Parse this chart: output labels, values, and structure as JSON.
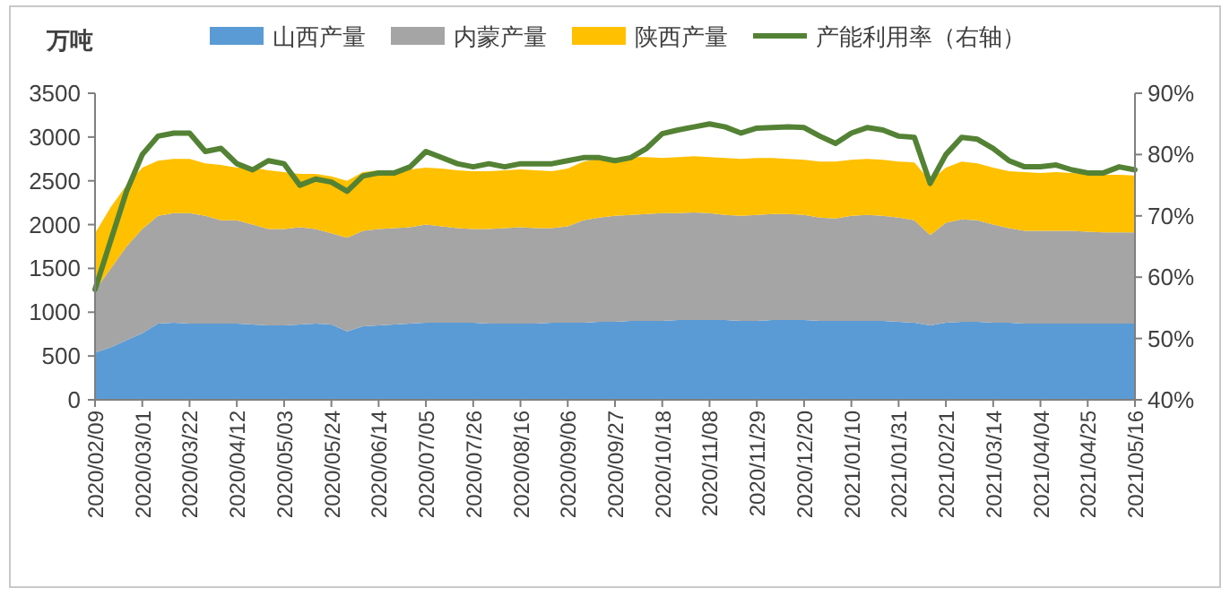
{
  "chart_data": {
    "type": "area",
    "stacked": true,
    "ylabel": "万吨",
    "legend": "top",
    "categories": [
      "2020/02/09",
      null,
      null,
      "2020/03/01",
      null,
      null,
      "2020/03/22",
      null,
      null,
      "2020/04/12",
      null,
      null,
      "2020/05/03",
      null,
      null,
      "2020/05/24",
      null,
      null,
      "2020/06/14",
      null,
      null,
      "2020/07/05",
      null,
      null,
      "2020/07/26",
      null,
      null,
      "2020/08/16",
      null,
      null,
      "2020/09/06",
      null,
      null,
      "2020/09/27",
      null,
      null,
      "2020/10/18",
      null,
      null,
      "2020/11/08",
      null,
      null,
      "2020/11/29",
      null,
      null,
      "2020/12/20",
      null,
      null,
      "2021/01/10",
      null,
      null,
      "2021/01/31",
      null,
      null,
      "2021/02/21",
      null,
      null,
      "2021/03/14",
      null,
      null,
      "2021/04/04",
      null,
      null,
      "2021/04/25",
      null,
      null,
      "2021/05/16"
    ],
    "series": [
      {
        "name": "山西产量",
        "color": "#5b9bd5",
        "values": [
          540,
          600,
          680,
          760,
          870,
          880,
          870,
          870,
          870,
          870,
          860,
          850,
          850,
          860,
          870,
          860,
          780,
          840,
          850,
          860,
          870,
          880,
          880,
          880,
          880,
          870,
          870,
          870,
          870,
          880,
          880,
          880,
          890,
          890,
          900,
          900,
          900,
          910,
          910,
          910,
          910,
          900,
          900,
          910,
          910,
          910,
          900,
          900,
          900,
          900,
          900,
          890,
          880,
          850,
          880,
          890,
          890,
          880,
          880,
          870,
          870,
          870,
          870,
          870,
          870,
          870,
          870
        ]
      },
      {
        "name": "内蒙产量",
        "color": "#a5a5a5",
        "values": [
          710,
          900,
          1070,
          1190,
          1230,
          1250,
          1260,
          1230,
          1180,
          1180,
          1140,
          1100,
          1100,
          1110,
          1080,
          1040,
          1070,
          1090,
          1100,
          1100,
          1100,
          1120,
          1100,
          1080,
          1070,
          1080,
          1090,
          1100,
          1090,
          1080,
          1100,
          1170,
          1190,
          1210,
          1210,
          1220,
          1230,
          1220,
          1230,
          1220,
          1200,
          1200,
          1210,
          1210,
          1210,
          1200,
          1180,
          1170,
          1200,
          1210,
          1200,
          1190,
          1170,
          1030,
          1140,
          1170,
          1160,
          1120,
          1080,
          1060,
          1060,
          1060,
          1060,
          1050,
          1040,
          1040,
          1040
        ]
      },
      {
        "name": "陕西产量",
        "color": "#ffc000",
        "values": [
          650,
          700,
          700,
          700,
          630,
          620,
          620,
          600,
          630,
          600,
          650,
          670,
          650,
          610,
          630,
          650,
          650,
          670,
          670,
          660,
          660,
          650,
          660,
          660,
          660,
          660,
          660,
          660,
          660,
          650,
          660,
          670,
          670,
          660,
          660,
          650,
          630,
          640,
          640,
          640,
          650,
          650,
          650,
          640,
          630,
          630,
          640,
          650,
          640,
          640,
          640,
          640,
          660,
          620,
          630,
          660,
          650,
          650,
          650,
          670,
          660,
          670,
          660,
          660,
          660,
          660,
          650
        ]
      },
      {
        "name": "产能利用率（右轴）",
        "type": "line",
        "axis": "y2",
        "color": "#548235",
        "values": [
          58,
          66,
          74,
          80,
          83,
          83.5,
          83.5,
          80.5,
          81,
          78.5,
          77.5,
          79,
          78.5,
          75,
          76,
          75.5,
          74,
          76.5,
          77,
          77,
          78,
          80.5,
          79.5,
          78.5,
          78,
          78.5,
          78,
          78.5,
          78.5,
          78.5,
          79,
          79.5,
          79.5,
          79,
          79.5,
          81,
          83.4,
          84,
          84.5,
          85,
          84.5,
          83.5,
          84.3,
          84.4,
          84.5,
          84.4,
          83,
          81.8,
          83.5,
          84.4,
          84,
          83,
          82.8,
          75.3,
          80,
          82.8,
          82.5,
          81,
          79,
          78,
          78,
          78.3,
          77.5,
          77,
          77,
          78,
          77.5
        ]
      }
    ],
    "ylim": [
      0,
      3500
    ],
    "yticks": [
      0,
      500,
      1000,
      1500,
      2000,
      2500,
      3000,
      3500
    ],
    "y2lim": [
      40,
      90
    ],
    "y2ticks": [
      {
        "value": 40,
        "label": "40%"
      },
      {
        "value": 50,
        "label": "50%"
      },
      {
        "value": 60,
        "label": "60%"
      },
      {
        "value": 70,
        "label": "70%"
      },
      {
        "value": 80,
        "label": "80%"
      },
      {
        "value": 90,
        "label": "90%"
      }
    ]
  }
}
